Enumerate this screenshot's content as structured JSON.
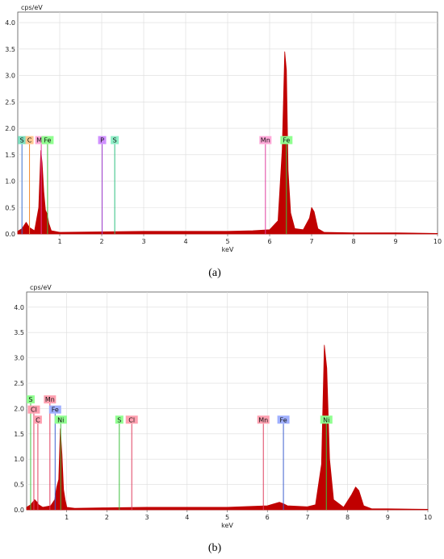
{
  "chart_data": [
    {
      "type": "area",
      "panel_label": "(a)",
      "ylabel": "cps/eV",
      "xlabel": "keV",
      "xlim": [
        0,
        10
      ],
      "ylim": [
        0,
        4.2
      ],
      "xticks": [
        "1",
        "2",
        "3",
        "4",
        "5",
        "6",
        "7",
        "8",
        "9",
        "10"
      ],
      "yticks": [
        "0.0",
        "0.5",
        "1.0",
        "1.5",
        "2.0",
        "2.5",
        "3.0",
        "3.5",
        "4.0"
      ],
      "grid": true,
      "series": [
        {
          "name": "",
          "color": "#c00000",
          "x": [
            0.0,
            0.1,
            0.2,
            0.28,
            0.4,
            0.5,
            0.55,
            0.58,
            0.62,
            0.66,
            0.7,
            0.74,
            0.8,
            1.0,
            2.0,
            3.0,
            4.0,
            5.0,
            5.6,
            6.0,
            6.2,
            6.3,
            6.36,
            6.4,
            6.44,
            6.5,
            6.6,
            6.8,
            6.95,
            7.0,
            7.06,
            7.15,
            7.3,
            8.0,
            9.0,
            10.0
          ],
          "y": [
            0.05,
            0.1,
            0.22,
            0.12,
            0.06,
            0.5,
            1.58,
            1.35,
            0.8,
            0.45,
            0.38,
            0.2,
            0.06,
            0.03,
            0.04,
            0.05,
            0.05,
            0.05,
            0.06,
            0.08,
            0.25,
            1.6,
            3.45,
            3.1,
            1.2,
            0.4,
            0.1,
            0.08,
            0.3,
            0.5,
            0.42,
            0.1,
            0.03,
            0.02,
            0.02,
            0.01
          ]
        }
      ],
      "lines": [
        {
          "element": "S",
          "x": 0.1,
          "height": 1.7,
          "color": "#3a70d0",
          "tag_bg": "#7fe0c0"
        },
        {
          "element": "C",
          "x": 0.28,
          "height": 1.7,
          "color": "#f08a30",
          "tag_bg": "#ffc890"
        },
        {
          "element": "Mn",
          "x": 0.56,
          "height": 1.7,
          "color": "#e040a0",
          "tag_bg": "#ffa8d8"
        },
        {
          "element": "Fe",
          "x": 0.71,
          "height": 1.7,
          "color": "#40c040",
          "tag_bg": "#90ff90"
        },
        {
          "element": "P",
          "x": 2.01,
          "height": 1.7,
          "color": "#a040d0",
          "tag_bg": "#d090ff"
        },
        {
          "element": "S",
          "x": 2.31,
          "height": 1.7,
          "color": "#30c080",
          "tag_bg": "#90f0c8"
        },
        {
          "element": "Mn",
          "x": 5.9,
          "height": 1.7,
          "color": "#e040a0",
          "tag_bg": "#ffa8d8"
        },
        {
          "element": "Fe",
          "x": 6.4,
          "height": 1.7,
          "color": "#40c040",
          "tag_bg": "#90ff90"
        }
      ]
    },
    {
      "type": "area",
      "panel_label": "(b)",
      "ylabel": "cps/eV",
      "xlabel": "keV",
      "xlim": [
        0,
        10
      ],
      "ylim": [
        0,
        4.3
      ],
      "xticks": [
        "1",
        "2",
        "3",
        "4",
        "5",
        "6",
        "7",
        "8",
        "9",
        "10"
      ],
      "yticks": [
        "0.0",
        "0.5",
        "1.0",
        "1.5",
        "2.0",
        "2.5",
        "3.0",
        "3.5",
        "4.0"
      ],
      "grid": true,
      "series": [
        {
          "name": "",
          "color": "#c00000",
          "x": [
            0.0,
            0.1,
            0.2,
            0.26,
            0.3,
            0.4,
            0.6,
            0.7,
            0.75,
            0.8,
            0.84,
            0.88,
            0.92,
            0.96,
            1.0,
            1.2,
            2.0,
            3.0,
            4.0,
            5.0,
            6.0,
            6.3,
            6.4,
            6.5,
            7.0,
            7.2,
            7.35,
            7.42,
            7.48,
            7.55,
            7.65,
            7.9,
            8.1,
            8.2,
            8.28,
            8.4,
            8.6,
            9.0,
            10.0
          ],
          "y": [
            0.05,
            0.1,
            0.2,
            0.15,
            0.1,
            0.05,
            0.08,
            0.2,
            0.45,
            0.6,
            1.6,
            1.1,
            0.4,
            0.2,
            0.05,
            0.03,
            0.04,
            0.05,
            0.05,
            0.05,
            0.08,
            0.15,
            0.12,
            0.08,
            0.06,
            0.1,
            0.9,
            3.25,
            2.8,
            1.0,
            0.2,
            0.05,
            0.3,
            0.45,
            0.38,
            0.08,
            0.02,
            0.02,
            0.01
          ]
        }
      ],
      "lines": [
        {
          "element": "S",
          "x": 0.1,
          "height": 2.1,
          "color": "#40c040",
          "tag_bg": "#90ff90"
        },
        {
          "element": "Cl",
          "x": 0.18,
          "height": 1.9,
          "color": "#e04060",
          "tag_bg": "#ffa0b0"
        },
        {
          "element": "C",
          "x": 0.28,
          "height": 1.7,
          "color": "#e04060",
          "tag_bg": "#ffa0b0"
        },
        {
          "element": "Mn",
          "x": 0.58,
          "height": 2.1,
          "color": "#e04060",
          "tag_bg": "#ffa0b0"
        },
        {
          "element": "Fe",
          "x": 0.71,
          "height": 1.9,
          "color": "#4060d0",
          "tag_bg": "#a0b0ff"
        },
        {
          "element": "Ni",
          "x": 0.85,
          "height": 1.7,
          "color": "#40c040",
          "tag_bg": "#90ff90"
        },
        {
          "element": "S",
          "x": 2.31,
          "height": 1.7,
          "color": "#40c040",
          "tag_bg": "#90ff90"
        },
        {
          "element": "Cl",
          "x": 2.62,
          "height": 1.7,
          "color": "#e04060",
          "tag_bg": "#ffa0b0"
        },
        {
          "element": "Mn",
          "x": 5.9,
          "height": 1.7,
          "color": "#e04060",
          "tag_bg": "#ffa0b0"
        },
        {
          "element": "Fe",
          "x": 6.4,
          "height": 1.7,
          "color": "#4060d0",
          "tag_bg": "#a0b0ff"
        },
        {
          "element": "Ni",
          "x": 7.47,
          "height": 1.7,
          "color": "#40c040",
          "tag_bg": "#90ff90"
        }
      ]
    }
  ]
}
